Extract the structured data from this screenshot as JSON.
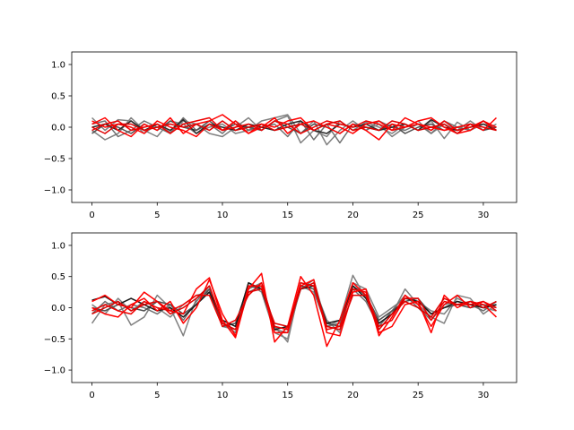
{
  "chart_data": [
    {
      "type": "line",
      "xlim": [
        -1.55,
        32.55
      ],
      "ylim": [
        -1.2,
        1.2
      ],
      "xticks": [
        0,
        5,
        10,
        15,
        20,
        25,
        30
      ],
      "yticks": [
        -1.0,
        -0.5,
        0.0,
        0.5,
        1.0
      ],
      "xticklabels": [
        "0",
        "5",
        "10",
        "15",
        "20",
        "25",
        "30"
      ],
      "yticklabels": [
        "−1.0",
        "−0.5",
        "0.0",
        "0.5",
        "1.0"
      ],
      "x": [
        0,
        1,
        2,
        3,
        4,
        5,
        6,
        7,
        8,
        9,
        10,
        11,
        12,
        13,
        14,
        15,
        16,
        17,
        18,
        19,
        20,
        21,
        22,
        23,
        24,
        25,
        26,
        27,
        28,
        29,
        30,
        31
      ],
      "series": [
        {
          "color": "#808080",
          "values": [
            0.15,
            -0.05,
            0.12,
            0.1,
            -0.1,
            0.05,
            -0.08,
            0.1,
            0.05,
            -0.1,
            -0.15,
            0.0,
            0.15,
            -0.05,
            0.1,
            0.18,
            -0.25,
            -0.05,
            -0.15,
            0.1,
            -0.05,
            0.08,
            0.0,
            -0.1,
            0.05,
            -0.05,
            0.1,
            -0.18,
            0.08,
            -0.05,
            0.05,
            0.0
          ]
        },
        {
          "color": "#808080",
          "values": [
            -0.05,
            -0.2,
            -0.1,
            0.15,
            -0.05,
            -0.15,
            0.1,
            0.05,
            -0.1,
            0.0,
            0.05,
            -0.1,
            -0.05,
            0.1,
            0.15,
            0.2,
            -0.1,
            0.1,
            -0.28,
            -0.05,
            0.1,
            -0.05,
            0.05,
            -0.15,
            0.0,
            0.1,
            -0.1,
            0.05,
            -0.05,
            0.1,
            -0.05,
            0.05
          ]
        },
        {
          "color": "#707070",
          "values": [
            0.05,
            0.1,
            -0.15,
            -0.05,
            0.1,
            0.0,
            -0.1,
            0.15,
            -0.05,
            0.05,
            -0.1,
            0.1,
            -0.05,
            0.0,
            0.05,
            -0.15,
            0.1,
            -0.2,
            0.05,
            -0.25,
            0.05,
            -0.05,
            0.1,
            0.0,
            -0.05,
            0.05,
            -0.1,
            0.1,
            0.0,
            -0.05,
            0.1,
            -0.05
          ]
        },
        {
          "color": "#505050",
          "values": [
            -0.1,
            0.05,
            0.0,
            -0.1,
            0.05,
            -0.05,
            0.1,
            0.0,
            -0.05,
            0.1,
            -0.05,
            0.05,
            0.0,
            -0.05,
            0.1,
            0.0,
            -0.1,
            0.05,
            0.0,
            -0.1,
            0.05,
            0.0,
            -0.05,
            0.05,
            -0.1,
            0.0,
            0.05,
            -0.05,
            0.0,
            0.05,
            -0.05,
            0.0
          ]
        },
        {
          "color": "#2a2a2a",
          "values": [
            0.0,
            0.05,
            -0.05,
            0.1,
            -0.05,
            0.05,
            -0.05,
            0.12,
            -0.1,
            0.05,
            0.0,
            -0.05,
            0.05,
            0.0,
            -0.05,
            0.05,
            0.1,
            -0.05,
            -0.1,
            0.05,
            0.0,
            0.05,
            -0.05,
            0.0,
            0.05,
            -0.05,
            0.12,
            0.0,
            -0.05,
            0.0,
            0.05,
            -0.05
          ]
        },
        {
          "color": "#ff0000",
          "values": [
            0.05,
            0.15,
            -0.05,
            -0.15,
            0.05,
            -0.05,
            0.15,
            -0.1,
            0.05,
            0.1,
            0.2,
            0.05,
            -0.1,
            0.05,
            0.0,
            0.1,
            0.15,
            -0.05,
            0.05,
            0.0,
            -0.1,
            0.05,
            0.1,
            -0.05,
            0.15,
            0.05,
            0.0,
            -0.05,
            0.0,
            0.05,
            -0.05,
            0.15
          ]
        },
        {
          "color": "#ff0000",
          "values": [
            0.1,
            0.0,
            0.05,
            0.0,
            -0.1,
            0.1,
            0.0,
            -0.05,
            -0.15,
            0.05,
            -0.05,
            0.1,
            -0.1,
            0.0,
            0.15,
            -0.1,
            0.05,
            0.1,
            0.0,
            -0.1,
            0.05,
            -0.05,
            -0.2,
            0.05,
            0.0,
            0.1,
            0.15,
            0.0,
            -0.1,
            -0.05,
            0.1,
            0.0
          ]
        },
        {
          "color": "#ee0000",
          "values": [
            -0.05,
            0.05,
            0.1,
            -0.05,
            0.0,
            0.05,
            -0.1,
            0.05,
            0.1,
            0.15,
            -0.05,
            0.0,
            0.05,
            -0.05,
            0.1,
            0.05,
            -0.1,
            0.0,
            0.1,
            0.05,
            0.0,
            0.1,
            0.05,
            -0.05,
            0.0,
            0.05,
            -0.05,
            0.1,
            -0.05,
            0.0,
            0.1,
            -0.05
          ]
        },
        {
          "color": "#dd0000",
          "values": [
            0.0,
            -0.1,
            0.05,
            0.05,
            -0.05,
            0.0,
            0.05,
            0.0,
            0.05,
            -0.05,
            0.1,
            -0.05,
            0.0,
            0.05,
            -0.05,
            0.0,
            0.05,
            -0.05,
            0.05,
            0.1,
            -0.05,
            0.0,
            -0.05,
            0.1,
            0.05,
            -0.05,
            0.0,
            0.05,
            -0.1,
            0.05,
            0.0,
            -0.05
          ]
        }
      ]
    },
    {
      "type": "line",
      "xlim": [
        -1.55,
        32.55
      ],
      "ylim": [
        -1.2,
        1.2
      ],
      "xticks": [
        0,
        5,
        10,
        15,
        20,
        25,
        30
      ],
      "yticks": [
        -1.0,
        -0.5,
        0.0,
        0.5,
        1.0
      ],
      "xticklabels": [
        "0",
        "5",
        "10",
        "15",
        "20",
        "25",
        "30"
      ],
      "yticklabels": [
        "−1.0",
        "−0.5",
        "0.0",
        "0.5",
        "1.0"
      ],
      "x": [
        0,
        1,
        2,
        3,
        4,
        5,
        6,
        7,
        8,
        9,
        10,
        11,
        12,
        13,
        14,
        15,
        16,
        17,
        18,
        19,
        20,
        21,
        22,
        23,
        24,
        25,
        26,
        27,
        28,
        29,
        30,
        31
      ],
      "series": [
        {
          "color": "#808080",
          "values": [
            -0.25,
            0.05,
            0.1,
            -0.28,
            -0.15,
            0.2,
            0.0,
            -0.45,
            0.15,
            0.3,
            -0.2,
            -0.3,
            0.4,
            0.25,
            -0.4,
            -0.5,
            0.35,
            0.25,
            -0.3,
            -0.2,
            0.52,
            0.15,
            -0.25,
            -0.1,
            0.3,
            0.05,
            -0.15,
            -0.25,
            0.2,
            0.15,
            -0.1,
            0.05
          ]
        },
        {
          "color": "#808080",
          "values": [
            0.05,
            -0.1,
            0.15,
            -0.05,
            0.1,
            0.0,
            -0.15,
            0.05,
            0.2,
            0.25,
            -0.3,
            -0.35,
            0.3,
            0.4,
            -0.3,
            -0.55,
            0.4,
            0.35,
            -0.2,
            -0.4,
            0.4,
            0.3,
            -0.15,
            0.0,
            0.15,
            0.1,
            -0.05,
            -0.1,
            0.15,
            0.05,
            0.0,
            -0.05
          ]
        },
        {
          "color": "#707070",
          "values": [
            -0.1,
            0.1,
            -0.05,
            0.05,
            0.0,
            -0.1,
            0.05,
            -0.2,
            0.1,
            0.35,
            -0.25,
            -0.4,
            0.25,
            0.35,
            -0.35,
            -0.4,
            0.3,
            0.45,
            -0.3,
            -0.25,
            0.3,
            0.1,
            -0.3,
            -0.05,
            0.2,
            0.0,
            -0.2,
            0.05,
            0.1,
            0.05,
            -0.05,
            0.1
          ]
        },
        {
          "color": "#505050",
          "values": [
            0.0,
            -0.05,
            0.05,
            0.0,
            -0.05,
            0.1,
            0.05,
            -0.1,
            0.05,
            0.3,
            -0.3,
            -0.25,
            0.35,
            0.3,
            -0.3,
            -0.35,
            0.35,
            0.3,
            -0.25,
            -0.3,
            0.35,
            0.2,
            -0.2,
            -0.05,
            0.1,
            0.15,
            -0.1,
            0.0,
            0.05,
            0.0,
            0.05,
            0.0
          ]
        },
        {
          "color": "#1a1a1a",
          "values": [
            0.12,
            0.18,
            0.05,
            0.15,
            0.05,
            -0.05,
            0.0,
            -0.15,
            0.05,
            0.25,
            -0.2,
            -0.3,
            0.4,
            0.3,
            -0.35,
            -0.3,
            0.3,
            0.35,
            -0.25,
            -0.2,
            0.35,
            0.15,
            -0.25,
            -0.1,
            0.15,
            0.1,
            -0.1,
            0.0,
            0.1,
            0.05,
            0.0,
            0.05
          ]
        },
        {
          "color": "#ff0000",
          "values": [
            0.1,
            0.2,
            0.05,
            0.0,
            0.25,
            0.1,
            -0.05,
            -0.1,
            0.3,
            0.48,
            -0.2,
            -0.48,
            0.3,
            0.55,
            -0.55,
            -0.3,
            0.5,
            0.2,
            -0.62,
            -0.2,
            0.4,
            0.2,
            -0.4,
            -0.3,
            0.05,
            0.1,
            -0.4,
            0.2,
            0.0,
            0.1,
            0.05,
            -0.15
          ]
        },
        {
          "color": "#ff0000",
          "values": [
            0.0,
            -0.1,
            -0.15,
            0.05,
            0.15,
            -0.05,
            0.1,
            -0.25,
            0.0,
            0.45,
            -0.1,
            -0.45,
            0.35,
            0.35,
            -0.4,
            -0.4,
            0.35,
            0.45,
            -0.4,
            -0.45,
            0.25,
            0.3,
            -0.45,
            -0.15,
            0.2,
            0.05,
            -0.3,
            0.05,
            0.2,
            0.0,
            0.1,
            0.0
          ]
        },
        {
          "color": "#ee0000",
          "values": [
            -0.05,
            0.05,
            -0.05,
            -0.1,
            0.1,
            0.0,
            -0.05,
            0.05,
            0.2,
            0.2,
            -0.3,
            -0.2,
            0.2,
            0.4,
            -0.3,
            -0.35,
            0.4,
            0.35,
            -0.35,
            -0.3,
            0.3,
            0.25,
            -0.3,
            -0.2,
            0.15,
            0.15,
            -0.2,
            0.1,
            0.05,
            0.05,
            0.1,
            -0.05
          ]
        },
        {
          "color": "#dd0000",
          "values": [
            -0.1,
            0.0,
            0.1,
            -0.05,
            0.05,
            0.1,
            -0.1,
            0.0,
            0.15,
            0.35,
            -0.25,
            -0.35,
            0.25,
            0.3,
            -0.25,
            -0.3,
            0.3,
            0.4,
            -0.3,
            -0.35,
            0.2,
            0.2,
            -0.35,
            -0.1,
            0.1,
            0.0,
            -0.15,
            0.15,
            0.05,
            0.1,
            0.0,
            0.1
          ]
        }
      ]
    }
  ]
}
